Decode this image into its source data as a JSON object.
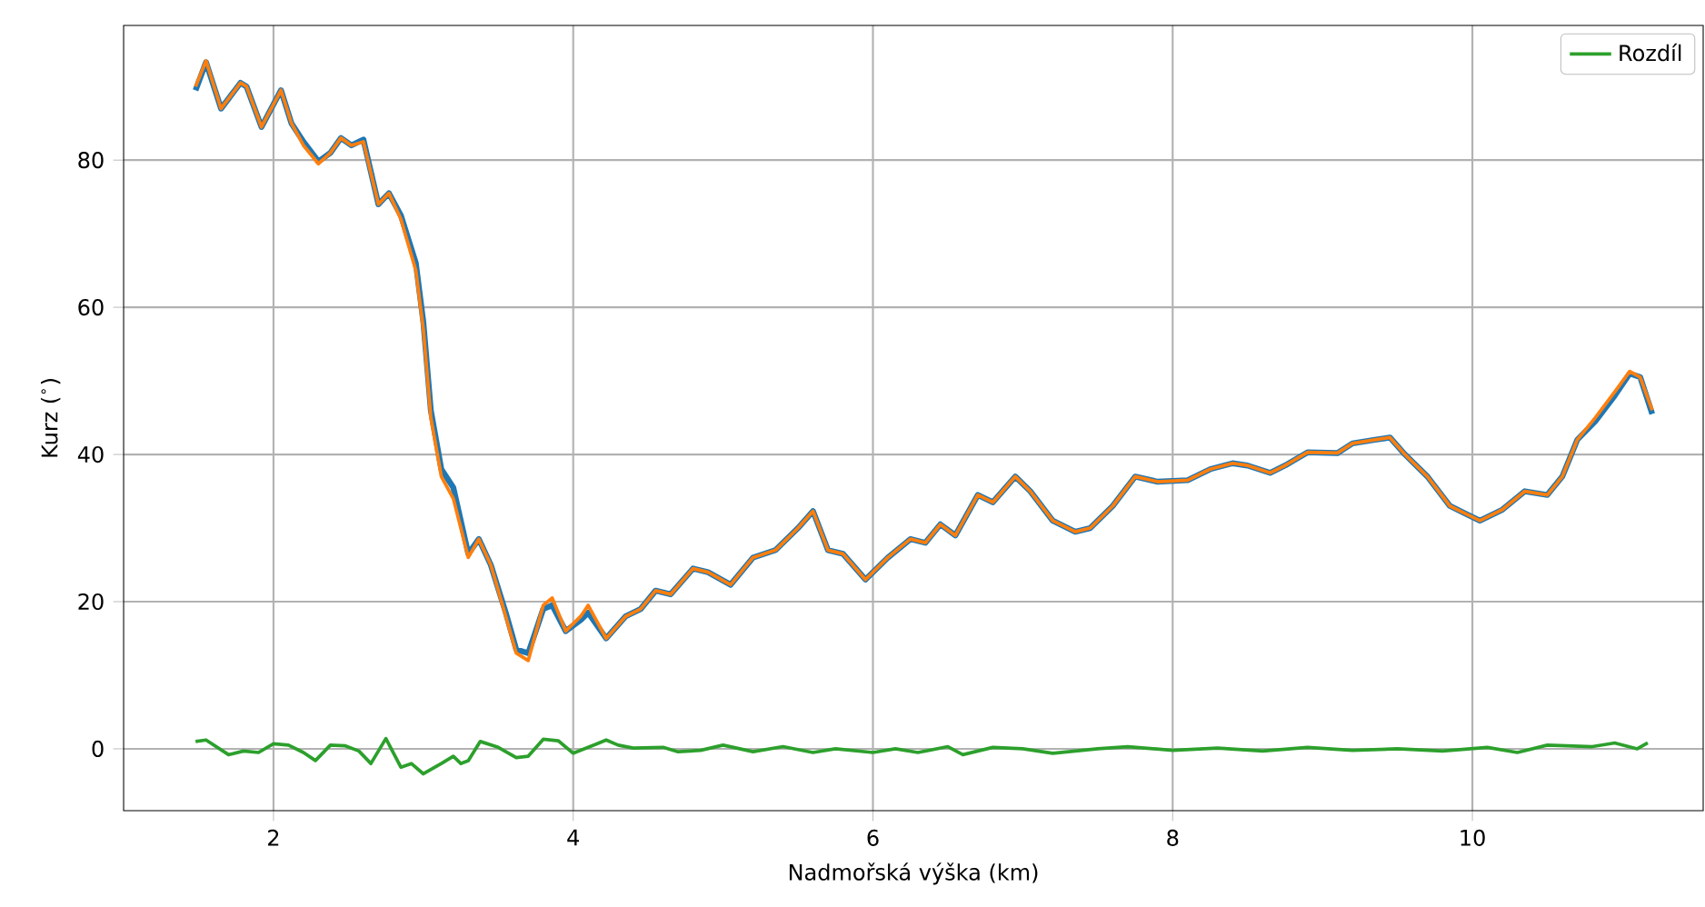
{
  "chart_data": {
    "type": "line",
    "xlabel": "Nadmořská výška (km)",
    "ylabel": "Kurz ($^{∘}$)",
    "xlim": [
      1.0,
      11.54
    ],
    "ylim": [
      -8.4,
      98.3
    ],
    "xticks": [
      2,
      4,
      6,
      8,
      10
    ],
    "yticks": [
      0,
      20,
      40,
      60,
      80
    ],
    "grid": true,
    "legend": "top right",
    "series": [
      {
        "color": "#1f77b4",
        "x": [
          1.48,
          1.55,
          1.65,
          1.78,
          1.82,
          1.92,
          2.05,
          2.12,
          2.2,
          2.3,
          2.38,
          2.45,
          2.52,
          2.6,
          2.7,
          2.77,
          2.85,
          2.95,
          3.0,
          3.05,
          3.12,
          3.2,
          3.3,
          3.37,
          3.45,
          3.55,
          3.62,
          3.7,
          3.8,
          3.86,
          3.95,
          4.05,
          4.1,
          4.22,
          4.35,
          4.45,
          4.55,
          4.65,
          4.8,
          4.9,
          5.05,
          5.2,
          5.35,
          5.5,
          5.6,
          5.7,
          5.8,
          5.95,
          6.1,
          6.25,
          6.35,
          6.45,
          6.55,
          6.7,
          6.8,
          6.95,
          7.05,
          7.2,
          7.35,
          7.45,
          7.6,
          7.75,
          7.9,
          8.1,
          8.25,
          8.4,
          8.5,
          8.65,
          8.75,
          8.9,
          9.1,
          9.2,
          9.35,
          9.45,
          9.55,
          9.7,
          9.85,
          9.95,
          10.05,
          10.2,
          10.35,
          10.5,
          10.6,
          10.7,
          10.82,
          10.95,
          11.05,
          11.12,
          11.2
        ],
        "values": [
          89.5,
          93.3,
          87,
          90.5,
          90,
          84.5,
          89.5,
          85,
          82.5,
          79.8,
          81,
          83,
          82,
          82.8,
          74,
          75.5,
          72.5,
          66,
          58,
          46,
          38,
          35.5,
          26.5,
          28.5,
          25,
          18.5,
          13.5,
          13,
          19,
          19.5,
          16,
          17.5,
          18.5,
          15,
          18,
          19,
          21.5,
          21,
          24.5,
          24,
          22.3,
          26,
          27,
          30,
          32.3,
          27,
          26.5,
          23,
          26,
          28.5,
          28,
          30.5,
          29,
          34.5,
          33.5,
          37,
          35,
          31,
          29.5,
          30,
          33,
          37,
          36.3,
          36.5,
          38,
          38.8,
          38.5,
          37.5,
          38.5,
          40.3,
          40.2,
          41.5,
          42,
          42.3,
          40,
          37,
          33,
          32,
          31,
          32.5,
          35,
          34.5,
          37,
          42,
          44.5,
          48,
          51,
          50.5,
          45.5
        ]
      },
      {
        "color": "#ff7f0e",
        "x": [
          1.48,
          1.55,
          1.65,
          1.78,
          1.82,
          1.92,
          2.05,
          2.12,
          2.2,
          2.3,
          2.38,
          2.45,
          2.52,
          2.6,
          2.7,
          2.77,
          2.85,
          2.95,
          3.0,
          3.05,
          3.12,
          3.2,
          3.3,
          3.37,
          3.45,
          3.55,
          3.62,
          3.7,
          3.8,
          3.86,
          3.95,
          4.05,
          4.1,
          4.22,
          4.35,
          4.45,
          4.55,
          4.65,
          4.8,
          4.9,
          5.05,
          5.2,
          5.35,
          5.5,
          5.6,
          5.7,
          5.8,
          5.95,
          6.1,
          6.25,
          6.35,
          6.45,
          6.55,
          6.7,
          6.8,
          6.95,
          7.05,
          7.2,
          7.35,
          7.45,
          7.6,
          7.75,
          7.9,
          8.1,
          8.25,
          8.4,
          8.5,
          8.65,
          8.75,
          8.9,
          9.1,
          9.2,
          9.35,
          9.45,
          9.55,
          9.7,
          9.85,
          9.95,
          10.05,
          10.2,
          10.35,
          10.5,
          10.6,
          10.7,
          10.82,
          10.95,
          11.05,
          11.12,
          11.2
        ],
        "values": [
          90,
          93.5,
          87,
          90.5,
          90,
          84.5,
          89.5,
          85,
          82,
          79.5,
          81,
          83,
          82,
          82.5,
          74,
          75.5,
          72,
          65,
          57,
          45,
          37,
          34,
          26,
          28.5,
          25,
          18,
          13,
          12,
          19.5,
          20.5,
          16,
          18,
          19.5,
          15,
          18,
          19,
          21.5,
          21,
          24.5,
          24,
          22.3,
          26,
          27,
          30,
          32.3,
          27,
          26.5,
          23,
          26,
          28.5,
          28,
          30.5,
          29,
          34.5,
          33.5,
          37,
          35,
          31,
          29.5,
          30,
          33,
          37,
          36.3,
          36.5,
          38,
          38.8,
          38.5,
          37.5,
          38.5,
          40.3,
          40.2,
          41.5,
          42,
          42.3,
          40,
          37,
          33,
          32,
          31,
          32.5,
          35,
          34.5,
          37,
          42,
          45,
          48.5,
          51.3,
          50.5,
          46
        ]
      },
      {
        "name": "Rozdíl",
        "color": "#2ca02c",
        "x": [
          1.48,
          1.55,
          1.7,
          1.8,
          1.9,
          2.0,
          2.1,
          2.2,
          2.28,
          2.38,
          2.48,
          2.57,
          2.65,
          2.75,
          2.85,
          2.92,
          3.0,
          3.12,
          3.2,
          3.25,
          3.3,
          3.38,
          3.5,
          3.62,
          3.7,
          3.8,
          3.9,
          4.0,
          4.15,
          4.22,
          4.3,
          4.4,
          4.6,
          4.7,
          4.85,
          5.0,
          5.2,
          5.4,
          5.6,
          5.75,
          6.0,
          6.15,
          6.3,
          6.5,
          6.6,
          6.8,
          7.0,
          7.2,
          7.5,
          7.7,
          8.0,
          8.3,
          8.6,
          8.9,
          9.2,
          9.5,
          9.8,
          10.1,
          10.3,
          10.5,
          10.8,
          10.95,
          11.1,
          11.17
        ],
        "values": [
          1,
          1.2,
          -0.8,
          -0.3,
          -0.5,
          0.7,
          0.5,
          -0.5,
          -1.6,
          0.5,
          0.4,
          -0.3,
          -2,
          1.4,
          -2.5,
          -2,
          -3.4,
          -2,
          -1,
          -2,
          -1.6,
          1,
          0.2,
          -1.2,
          -1,
          1.3,
          1.1,
          -0.6,
          0.6,
          1.2,
          0.5,
          0.1,
          0.2,
          -0.4,
          -0.2,
          0.5,
          -0.4,
          0.3,
          -0.5,
          0,
          -0.5,
          0,
          -0.5,
          0.3,
          -0.8,
          0.2,
          0,
          -0.6,
          0,
          0.3,
          -0.2,
          0.1,
          -0.3,
          0.2,
          -0.2,
          0,
          -0.3,
          0.2,
          -0.5,
          0.5,
          0.3,
          0.8,
          0,
          0.8
        ]
      }
    ]
  }
}
